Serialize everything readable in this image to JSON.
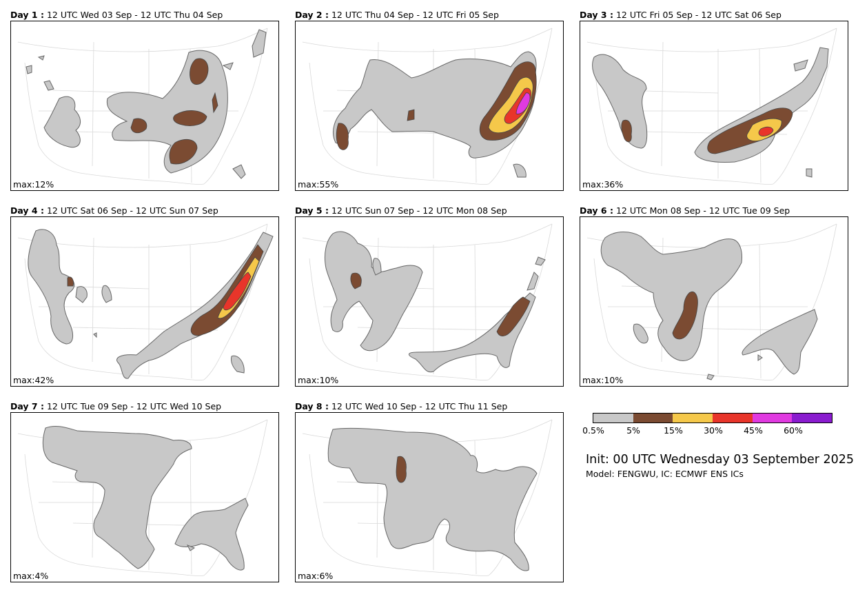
{
  "legend": {
    "colors": [
      "#c8c8c8",
      "#7b4b32",
      "#f5c84a",
      "#e8352a",
      "#e03ae0",
      "#8a1ccf"
    ],
    "tick_labels": [
      "0.5%",
      "5%",
      "15%",
      "30%",
      "45%",
      "60%"
    ]
  },
  "init_text": "Init: 00 UTC Wednesday 03 September 2025",
  "model_text": "Model: FENGWU, IC: ECMWF ENS ICs",
  "panels": [
    {
      "day": "Day 1 :",
      "period": "12 UTC Wed 03 Sep - 12 UTC Thu 04 Sep",
      "max": "max:12%"
    },
    {
      "day": "Day 2 :",
      "period": "12 UTC Thu 04 Sep - 12 UTC Fri 05 Sep",
      "max": "max:55%"
    },
    {
      "day": "Day 3 :",
      "period": "12 UTC Fri 05 Sep - 12 UTC Sat 06 Sep",
      "max": "max:36%"
    },
    {
      "day": "Day 4 :",
      "period": "12 UTC Sat 06 Sep - 12 UTC Sun 07 Sep",
      "max": "max:42%"
    },
    {
      "day": "Day 5 :",
      "period": "12 UTC Sun 07 Sep - 12 UTC Mon 08 Sep",
      "max": "max:10%"
    },
    {
      "day": "Day 6 :",
      "period": "12 UTC Mon 08 Sep - 12 UTC Tue 09 Sep",
      "max": "max:10%"
    },
    {
      "day": "Day 7 :",
      "period": "12 UTC Tue 09 Sep - 12 UTC Wed 10 Sep",
      "max": "max:4%"
    },
    {
      "day": "Day 8 :",
      "period": "12 UTC Wed 10 Sep - 12 UTC Thu 11 Sep",
      "max": "max:6%"
    }
  ]
}
